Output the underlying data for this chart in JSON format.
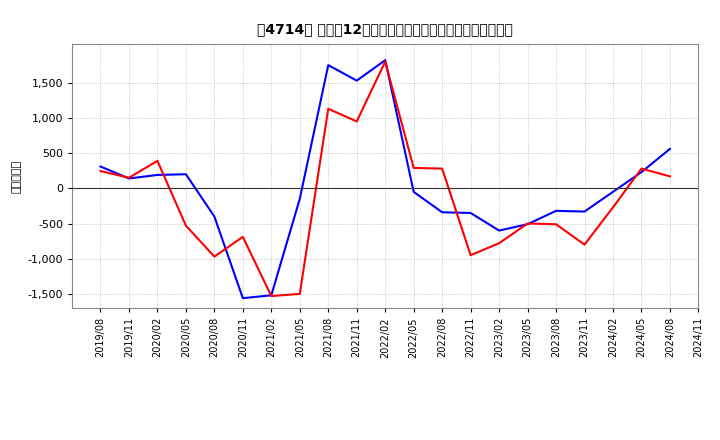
{
  "title": "［4714］ 利益だ12か月移動合計の対前年同期増減額の推移",
  "ylabel": "（百万円）",
  "line_colors": [
    "#0000ff",
    "#ff0000"
  ],
  "background_color": "#ffffff",
  "plot_bg_color": "#ffffff",
  "grid_color": "#aaaaaa",
  "ylim": [
    -1700,
    2050
  ],
  "yticks": [
    -1500,
    -1000,
    -500,
    0,
    500,
    1000,
    1500
  ],
  "dates": [
    "2019/08",
    "2019/11",
    "2020/02",
    "2020/05",
    "2020/08",
    "2020/11",
    "2021/02",
    "2021/05",
    "2021/08",
    "2021/11",
    "2022/02",
    "2022/05",
    "2022/08",
    "2022/11",
    "2023/02",
    "2023/05",
    "2023/08",
    "2023/11",
    "2024/02",
    "2024/05",
    "2024/08",
    "2024/11"
  ],
  "keijo_rieki": [
    310,
    140,
    190,
    200,
    -400,
    -1560,
    -1520,
    -150,
    1750,
    1530,
    1820,
    -50,
    -340,
    -350,
    -600,
    -510,
    -320,
    -330,
    -50,
    230,
    560,
    null
  ],
  "touki_junrieki": [
    245,
    150,
    390,
    -530,
    -970,
    -690,
    -1530,
    -1500,
    1130,
    950,
    1800,
    290,
    280,
    -950,
    -780,
    -500,
    -510,
    -800,
    -270,
    280,
    170,
    null
  ]
}
